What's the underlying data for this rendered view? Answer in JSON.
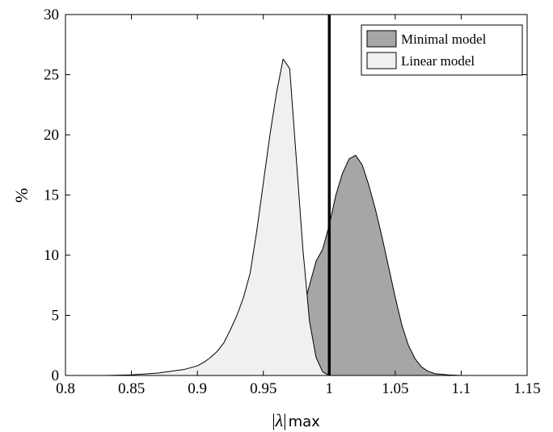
{
  "chart_data": {
    "type": "area",
    "xlabel_parts": {
      "abs_open": "|",
      "symbol": "λ",
      "abs_close": "|",
      "subscript": "max"
    },
    "ylabel": "%",
    "xlim": [
      0.8,
      1.15
    ],
    "ylim": [
      0,
      30
    ],
    "xticks": [
      "0.8",
      "0.85",
      "0.9",
      "0.95",
      "1",
      "1.05",
      "1.1",
      "1.15"
    ],
    "yticks": [
      "0",
      "5",
      "10",
      "15",
      "20",
      "25",
      "30"
    ],
    "grid": false,
    "legend_position": "top-right",
    "reference_line": {
      "x": 1.0,
      "color": "#000000"
    },
    "series": [
      {
        "name": "Minimal model",
        "color": "#a6a6a6",
        "x": [
          0.975,
          0.98,
          0.985,
          0.99,
          0.995,
          1.0,
          1.005,
          1.01,
          1.015,
          1.02,
          1.025,
          1.03,
          1.035,
          1.04,
          1.045,
          1.05,
          1.055,
          1.06,
          1.065,
          1.07,
          1.075,
          1.08,
          1.09,
          1.1
        ],
        "values": [
          0,
          5.5,
          7.5,
          9.5,
          10.5,
          12.5,
          15.0,
          16.8,
          18.0,
          18.3,
          17.5,
          15.8,
          13.8,
          11.5,
          9.0,
          6.5,
          4.2,
          2.5,
          1.4,
          0.7,
          0.35,
          0.15,
          0.05,
          0
        ]
      },
      {
        "name": "Linear model",
        "color": "#f0f0f0",
        "x": [
          0.83,
          0.85,
          0.87,
          0.88,
          0.89,
          0.9,
          0.905,
          0.91,
          0.915,
          0.92,
          0.925,
          0.93,
          0.935,
          0.94,
          0.945,
          0.95,
          0.955,
          0.96,
          0.965,
          0.97,
          0.975,
          0.98,
          0.985,
          0.99,
          0.995,
          1.0
        ],
        "values": [
          0,
          0.05,
          0.2,
          0.35,
          0.5,
          0.8,
          1.1,
          1.5,
          2.0,
          2.7,
          3.8,
          5.0,
          6.5,
          8.5,
          12.0,
          16.0,
          20.0,
          23.5,
          26.3,
          25.5,
          18.0,
          10.5,
          4.5,
          1.5,
          0.3,
          0
        ]
      }
    ]
  }
}
